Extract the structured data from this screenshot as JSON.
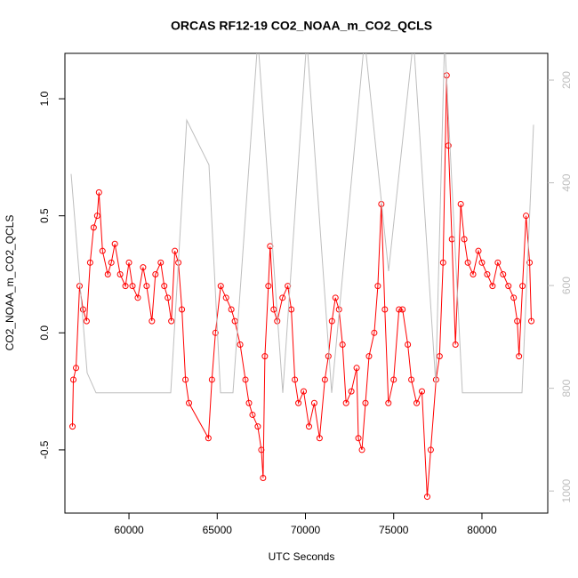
{
  "chart_data": {
    "type": "scatter",
    "title": "ORCAS RF12-19 CO2_NOAA_m_CO2_QCLS",
    "x_label": "UTC Seconds",
    "y_label": "CO2_NOAA_m_CO2_QCLS",
    "xlim": [
      56370,
      83730
    ],
    "ylim": [
      -0.77,
      1.194
    ],
    "y2lim": [
      1043,
      148
    ],
    "xticks": [
      60000,
      65000,
      70000,
      75000,
      80000
    ],
    "yticks": [
      -0.5,
      {
        "value": 0,
        "label": "0.0"
      },
      0.5,
      {
        "value": 1,
        "label": "1.0"
      }
    ],
    "y2ticks": [
      200,
      400,
      600,
      800,
      1000
    ],
    "series": [
      {
        "color": "#ff0000",
        "marker": "circle",
        "line": true,
        "x": [
          56800,
          56850,
          57000,
          57200,
          57400,
          57600,
          57800,
          58000,
          58200,
          58300,
          58500,
          58800,
          59000,
          59200,
          59500,
          59800,
          60000,
          60200,
          60500,
          60800,
          61000,
          61300,
          61500,
          61800,
          62000,
          62200,
          62400,
          62600,
          62800,
          63000,
          63200,
          63400,
          64500,
          64700,
          64900,
          65200,
          65500,
          65800,
          66000,
          66300,
          66600,
          66800,
          67000,
          67300,
          67500,
          67600,
          67700,
          67900,
          68000,
          68200,
          68400,
          68700,
          69000,
          69200,
          69400,
          69600,
          69900,
          70200,
          70500,
          70800,
          71100,
          71300,
          71500,
          71700,
          71900,
          72100,
          72300,
          72600,
          72900,
          73000,
          73200,
          73400,
          73600,
          73900,
          74100,
          74300,
          74500,
          74700,
          75000,
          75300,
          75500,
          75800,
          76000,
          76300,
          76600,
          76900,
          77100,
          77400,
          77600,
          77800,
          78000,
          78100,
          78300,
          78500,
          78800,
          79000,
          79200,
          79500,
          79800,
          80000,
          80300,
          80600,
          80900,
          81200,
          81500,
          81800,
          82000,
          82100,
          82300,
          82500,
          82700,
          82800
        ],
        "values": [
          -0.4,
          -0.2,
          -0.15,
          0.2,
          0.1,
          0.05,
          0.3,
          0.45,
          0.5,
          0.6,
          0.35,
          0.25,
          0.3,
          0.38,
          0.25,
          0.2,
          0.3,
          0.2,
          0.15,
          0.28,
          0.2,
          0.05,
          0.25,
          0.3,
          0.2,
          0.15,
          0.05,
          0.35,
          0.3,
          0.1,
          -0.2,
          -0.3,
          -0.45,
          -0.2,
          0.0,
          0.2,
          0.15,
          0.1,
          0.05,
          -0.05,
          -0.2,
          -0.3,
          -0.35,
          -0.4,
          -0.5,
          -0.62,
          -0.1,
          0.2,
          0.37,
          0.1,
          0.05,
          0.15,
          0.2,
          0.1,
          -0.2,
          -0.3,
          -0.25,
          -0.4,
          -0.3,
          -0.45,
          -0.2,
          -0.1,
          0.05,
          0.15,
          0.1,
          -0.05,
          -0.3,
          -0.25,
          -0.15,
          -0.45,
          -0.5,
          -0.3,
          -0.1,
          0.0,
          0.2,
          0.55,
          0.1,
          -0.3,
          -0.2,
          0.1,
          0.1,
          -0.05,
          -0.2,
          -0.3,
          -0.25,
          -0.7,
          -0.5,
          -0.2,
          -0.1,
          0.3,
          1.1,
          0.8,
          0.4,
          -0.05,
          0.55,
          0.4,
          0.3,
          0.25,
          0.35,
          0.3,
          0.25,
          0.2,
          0.3,
          0.25,
          0.2,
          0.15,
          0.05,
          -0.1,
          0.2,
          0.5,
          0.3,
          0.05
        ]
      },
      {
        "color": "#bebebe",
        "axis": "y2",
        "marker": "none",
        "line": true,
        "x": [
          56725,
          57632,
          58136,
          62368,
          63275,
          64534,
          65189,
          65894,
          67305,
          68715,
          70076,
          71486,
          73350,
          74710,
          76121,
          77380,
          77884,
          78892,
          82267,
          82922
        ],
        "values": [
          383,
          770,
          809,
          809,
          278,
          365,
          809,
          809,
          120,
          809,
          120,
          809,
          120,
          572,
          120,
          790,
          120,
          809,
          809,
          287
        ]
      }
    ]
  }
}
